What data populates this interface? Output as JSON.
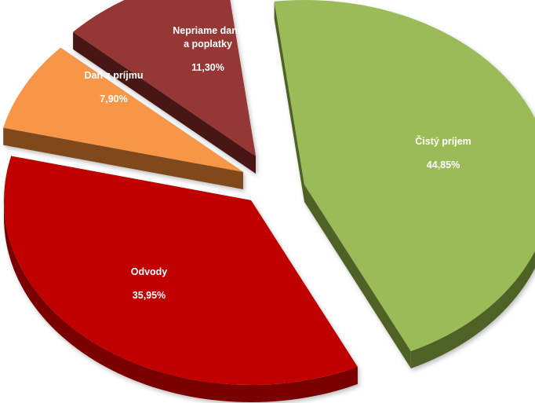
{
  "chart_data": {
    "type": "pie",
    "style": "3d-exploded",
    "slices": [
      {
        "name": "Čistý príjem",
        "label_lines": [
          "Čistý príjem"
        ],
        "value": 44.85,
        "value_text": "44,85%",
        "color": "#9bbb59",
        "side_color": "#4f6228"
      },
      {
        "name": "Odvody",
        "label_lines": [
          "Odvody"
        ],
        "value": 35.95,
        "value_text": "35,95%",
        "color": "#c00000",
        "side_color": "#7a0000"
      },
      {
        "name": "Daň z príjmu",
        "label_lines": [
          "Daň z príjmu"
        ],
        "value": 7.9,
        "value_text": "7,90%",
        "color": "#f79646",
        "side_color": "#7f4a1e"
      },
      {
        "name": "Nepriame dane a poplatky",
        "label_lines": [
          "Nepriame dane",
          "a poplatky"
        ],
        "value": 11.3,
        "value_text": "11,30%",
        "color": "#953735",
        "side_color": "#4a1615"
      }
    ]
  }
}
